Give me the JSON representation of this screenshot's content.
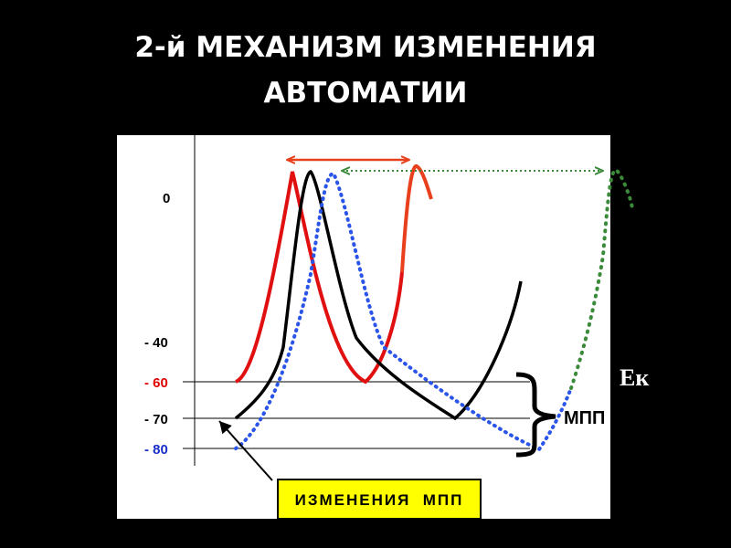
{
  "title": {
    "lines": [
      "2-й МЕХАНИЗМ ИЗМЕНЕНИЯ",
      "АВТОМАТИИ"
    ]
  },
  "axis_labels": [
    "0",
    "- 40",
    "- 60",
    "- 70",
    "- 80"
  ],
  "ek_label": "Ек",
  "mpp_label": "МПП",
  "box_label": "ИЗМЕНЕНИЯ  МПП"
}
